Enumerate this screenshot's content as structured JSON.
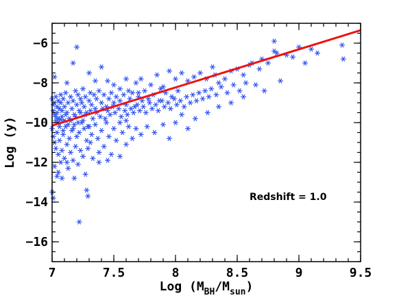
{
  "chart_data": {
    "type": "scatter",
    "xlabel": {
      "prefix": "Log (M",
      "sub1": "BH",
      "mid": "/M",
      "sub2": "sun",
      "suffix": ")"
    },
    "ylabel": "Log (y)",
    "xlim": [
      7,
      9.5
    ],
    "ylim": [
      -17,
      -5
    ],
    "xticks": [
      {
        "value": 7,
        "label": "7"
      },
      {
        "value": 7.5,
        "label": "7.5"
      },
      {
        "value": 8,
        "label": "8"
      },
      {
        "value": 8.5,
        "label": "8.5"
      },
      {
        "value": 9,
        "label": "9"
      },
      {
        "value": 9.5,
        "label": "9.5"
      }
    ],
    "yticks": [
      {
        "value": -6,
        "label": "−6"
      },
      {
        "value": -8,
        "label": "−8"
      },
      {
        "value": -10,
        "label": "−10"
      },
      {
        "value": -12,
        "label": "−12"
      },
      {
        "value": -14,
        "label": "−14"
      },
      {
        "value": -16,
        "label": "−16"
      }
    ],
    "annotation": "Redshift = 1.0",
    "colors": {
      "points": "#3355ee",
      "fit": "#ee1111"
    },
    "fit_line": {
      "x": [
        7.0,
        9.5
      ],
      "y": [
        -10.15,
        -5.35
      ]
    },
    "points": [
      {
        "x": 7.2,
        "y": -6.2
      },
      {
        "x": 7.17,
        "y": -7.0
      },
      {
        "x": 7.02,
        "y": -7.7
      },
      {
        "x": 7.12,
        "y": -8.0
      },
      {
        "x": 7.3,
        "y": -7.5
      },
      {
        "x": 7.35,
        "y": -7.9
      },
      {
        "x": 7.4,
        "y": -7.2
      },
      {
        "x": 7.45,
        "y": -7.9
      },
      {
        "x": 7.5,
        "y": -8.1
      },
      {
        "x": 7.55,
        "y": -8.3
      },
      {
        "x": 7.6,
        "y": -7.8
      },
      {
        "x": 7.62,
        "y": -8.4
      },
      {
        "x": 7.68,
        "y": -8.0
      },
      {
        "x": 7.7,
        "y": -8.5
      },
      {
        "x": 7.72,
        "y": -7.8
      },
      {
        "x": 7.8,
        "y": -8.1
      },
      {
        "x": 7.85,
        "y": -7.6
      },
      {
        "x": 7.88,
        "y": -8.3
      },
      {
        "x": 7.9,
        "y": -8.2
      },
      {
        "x": 7.95,
        "y": -7.4
      },
      {
        "x": 8.0,
        "y": -7.8
      },
      {
        "x": 8.02,
        "y": -8.4
      },
      {
        "x": 8.05,
        "y": -7.5
      },
      {
        "x": 8.1,
        "y": -7.9
      },
      {
        "x": 8.15,
        "y": -7.7
      },
      {
        "x": 8.2,
        "y": -7.5
      },
      {
        "x": 8.25,
        "y": -7.8
      },
      {
        "x": 8.3,
        "y": -7.2
      },
      {
        "x": 8.32,
        "y": -7.6
      },
      {
        "x": 8.35,
        "y": -8.0
      },
      {
        "x": 8.4,
        "y": -7.8
      },
      {
        "x": 8.45,
        "y": -7.4
      },
      {
        "x": 8.5,
        "y": -7.3
      },
      {
        "x": 8.55,
        "y": -7.6
      },
      {
        "x": 8.6,
        "y": -7.1
      },
      {
        "x": 8.62,
        "y": -7.0
      },
      {
        "x": 8.68,
        "y": -7.3
      },
      {
        "x": 8.7,
        "y": -6.8
      },
      {
        "x": 8.75,
        "y": -7.0
      },
      {
        "x": 8.8,
        "y": -5.9
      },
      {
        "x": 8.82,
        "y": -6.5
      },
      {
        "x": 8.9,
        "y": -6.6
      },
      {
        "x": 8.95,
        "y": -6.7
      },
      {
        "x": 9.0,
        "y": -6.2
      },
      {
        "x": 9.05,
        "y": -7.0
      },
      {
        "x": 9.1,
        "y": -6.3
      },
      {
        "x": 9.15,
        "y": -6.5
      },
      {
        "x": 9.35,
        "y": -6.1
      },
      {
        "x": 9.36,
        "y": -6.8
      },
      {
        "x": 8.8,
        "y": -6.4
      },
      {
        "x": 7.0,
        "y": -8.8
      },
      {
        "x": 7.01,
        "y": -9.1
      },
      {
        "x": 7.01,
        "y": -9.4
      },
      {
        "x": 7.02,
        "y": -9.0
      },
      {
        "x": 7.02,
        "y": -9.6
      },
      {
        "x": 7.03,
        "y": -8.7
      },
      {
        "x": 7.03,
        "y": -9.9
      },
      {
        "x": 7.04,
        "y": -9.2
      },
      {
        "x": 7.04,
        "y": -9.5
      },
      {
        "x": 7.05,
        "y": -8.9
      },
      {
        "x": 7.05,
        "y": -9.8
      },
      {
        "x": 7.06,
        "y": -9.3
      },
      {
        "x": 7.06,
        "y": -10.2
      },
      {
        "x": 7.07,
        "y": -9.0
      },
      {
        "x": 7.07,
        "y": -8.6
      },
      {
        "x": 7.08,
        "y": -9.7
      },
      {
        "x": 7.08,
        "y": -9.4
      },
      {
        "x": 7.09,
        "y": -8.8
      },
      {
        "x": 7.1,
        "y": -9.2
      },
      {
        "x": 7.1,
        "y": -9.9
      },
      {
        "x": 7.11,
        "y": -8.5
      },
      {
        "x": 7.12,
        "y": -9.5
      },
      {
        "x": 7.13,
        "y": -9.0
      },
      {
        "x": 7.14,
        "y": -9.8
      },
      {
        "x": 7.15,
        "y": -8.7
      },
      {
        "x": 7.16,
        "y": -9.3
      },
      {
        "x": 7.17,
        "y": -8.9
      },
      {
        "x": 7.18,
        "y": -9.6
      },
      {
        "x": 7.19,
        "y": -8.4
      },
      {
        "x": 7.2,
        "y": -9.1
      },
      {
        "x": 7.21,
        "y": -8.6
      },
      {
        "x": 7.22,
        "y": -9.4
      },
      {
        "x": 7.23,
        "y": -8.8
      },
      {
        "x": 7.24,
        "y": -9.0
      },
      {
        "x": 7.25,
        "y": -8.3
      },
      {
        "x": 7.26,
        "y": -9.2
      },
      {
        "x": 7.27,
        "y": -8.7
      },
      {
        "x": 7.28,
        "y": -9.5
      },
      {
        "x": 7.3,
        "y": -8.9
      },
      {
        "x": 7.31,
        "y": -8.5
      },
      {
        "x": 7.32,
        "y": -9.1
      },
      {
        "x": 7.34,
        "y": -8.6
      },
      {
        "x": 7.35,
        "y": -9.3
      },
      {
        "x": 7.36,
        "y": -8.8
      },
      {
        "x": 7.38,
        "y": -8.4
      },
      {
        "x": 7.4,
        "y": -9.0
      },
      {
        "x": 7.42,
        "y": -8.6
      },
      {
        "x": 7.44,
        "y": -9.2
      },
      {
        "x": 7.46,
        "y": -8.8
      },
      {
        "x": 7.48,
        "y": -8.5
      },
      {
        "x": 7.5,
        "y": -9.0
      },
      {
        "x": 7.52,
        "y": -8.7
      },
      {
        "x": 7.55,
        "y": -8.9
      },
      {
        "x": 7.58,
        "y": -8.6
      },
      {
        "x": 7.6,
        "y": -9.1
      },
      {
        "x": 7.63,
        "y": -8.8
      },
      {
        "x": 7.65,
        "y": -8.5
      },
      {
        "x": 7.67,
        "y": -9.2
      },
      {
        "x": 7.7,
        "y": -8.7
      },
      {
        "x": 7.73,
        "y": -8.9
      },
      {
        "x": 7.75,
        "y": -8.4
      },
      {
        "x": 7.78,
        "y": -8.8
      },
      {
        "x": 7.82,
        "y": -8.6
      },
      {
        "x": 7.87,
        "y": -8.9
      },
      {
        "x": 7.92,
        "y": -8.5
      },
      {
        "x": 7.97,
        "y": -8.7
      },
      {
        "x": 7.0,
        "y": -10.3
      },
      {
        "x": 7.01,
        "y": -10.7
      },
      {
        "x": 7.02,
        "y": -11.0
      },
      {
        "x": 7.03,
        "y": -11.3
      },
      {
        "x": 7.04,
        "y": -10.5
      },
      {
        "x": 7.05,
        "y": -11.6
      },
      {
        "x": 7.06,
        "y": -10.9
      },
      {
        "x": 7.07,
        "y": -12.0
      },
      {
        "x": 7.08,
        "y": -11.4
      },
      {
        "x": 7.09,
        "y": -10.6
      },
      {
        "x": 7.1,
        "y": -11.8
      },
      {
        "x": 7.11,
        "y": -10.2
      },
      {
        "x": 7.12,
        "y": -11.1
      },
      {
        "x": 7.13,
        "y": -12.3
      },
      {
        "x": 7.14,
        "y": -10.8
      },
      {
        "x": 7.15,
        "y": -11.5
      },
      {
        "x": 7.16,
        "y": -10.4
      },
      {
        "x": 7.17,
        "y": -11.9
      },
      {
        "x": 7.18,
        "y": -10.1
      },
      {
        "x": 7.19,
        "y": -11.2
      },
      {
        "x": 7.2,
        "y": -10.7
      },
      {
        "x": 7.21,
        "y": -12.1
      },
      {
        "x": 7.22,
        "y": -10.5
      },
      {
        "x": 7.23,
        "y": -11.4
      },
      {
        "x": 7.24,
        "y": -10.0
      },
      {
        "x": 7.25,
        "y": -11.7
      },
      {
        "x": 7.26,
        "y": -10.3
      },
      {
        "x": 7.27,
        "y": -12.6
      },
      {
        "x": 7.28,
        "y": -10.9
      },
      {
        "x": 7.29,
        "y": -11.3
      },
      {
        "x": 7.3,
        "y": -10.2
      },
      {
        "x": 7.31,
        "y": -11.0
      },
      {
        "x": 7.32,
        "y": -10.6
      },
      {
        "x": 7.33,
        "y": -11.8
      },
      {
        "x": 7.35,
        "y": -10.1
      },
      {
        "x": 7.37,
        "y": -10.8
      },
      {
        "x": 7.38,
        "y": -11.5
      },
      {
        "x": 7.4,
        "y": -10.4
      },
      {
        "x": 7.42,
        "y": -11.2
      },
      {
        "x": 7.44,
        "y": -10.0
      },
      {
        "x": 7.46,
        "y": -10.7
      },
      {
        "x": 7.48,
        "y": -11.6
      },
      {
        "x": 7.5,
        "y": -10.3
      },
      {
        "x": 7.52,
        "y": -10.9
      },
      {
        "x": 7.55,
        "y": -11.7
      },
      {
        "x": 7.57,
        "y": -10.5
      },
      {
        "x": 7.6,
        "y": -11.1
      },
      {
        "x": 7.62,
        "y": -10.2
      },
      {
        "x": 7.65,
        "y": -10.8
      },
      {
        "x": 7.0,
        "y": -13.5
      },
      {
        "x": 7.01,
        "y": -13.8
      },
      {
        "x": 7.05,
        "y": -12.5
      },
      {
        "x": 7.08,
        "y": -12.8
      },
      {
        "x": 7.28,
        "y": -13.4
      },
      {
        "x": 7.29,
        "y": -13.7
      },
      {
        "x": 7.22,
        "y": -15.0
      },
      {
        "x": 7.03,
        "y": -9.7
      },
      {
        "x": 7.05,
        "y": -10.0
      },
      {
        "x": 7.07,
        "y": -9.85
      },
      {
        "x": 7.09,
        "y": -10.4
      },
      {
        "x": 7.11,
        "y": -9.6
      },
      {
        "x": 7.13,
        "y": -10.1
      },
      {
        "x": 7.15,
        "y": -9.9
      },
      {
        "x": 7.17,
        "y": -10.3
      },
      {
        "x": 7.19,
        "y": -9.7
      },
      {
        "x": 7.21,
        "y": -10.0
      },
      {
        "x": 7.23,
        "y": -9.5
      },
      {
        "x": 7.25,
        "y": -9.9
      },
      {
        "x": 7.27,
        "y": -9.6
      },
      {
        "x": 7.29,
        "y": -10.2
      },
      {
        "x": 7.31,
        "y": -9.4
      },
      {
        "x": 7.33,
        "y": -9.8
      },
      {
        "x": 7.36,
        "y": -9.5
      },
      {
        "x": 7.39,
        "y": -9.7
      },
      {
        "x": 7.41,
        "y": -9.3
      },
      {
        "x": 7.43,
        "y": -9.8
      },
      {
        "x": 7.45,
        "y": -9.4
      },
      {
        "x": 7.47,
        "y": -9.6
      },
      {
        "x": 7.49,
        "y": -9.2
      },
      {
        "x": 7.51,
        "y": -9.5
      },
      {
        "x": 7.54,
        "y": -9.3
      },
      {
        "x": 7.56,
        "y": -9.7
      },
      {
        "x": 7.59,
        "y": -9.4
      },
      {
        "x": 7.61,
        "y": -9.6
      },
      {
        "x": 7.64,
        "y": -9.3
      },
      {
        "x": 7.66,
        "y": -9.5
      },
      {
        "x": 7.69,
        "y": -9.1
      },
      {
        "x": 7.71,
        "y": -9.4
      },
      {
        "x": 7.74,
        "y": -9.2
      },
      {
        "x": 7.76,
        "y": -9.5
      },
      {
        "x": 7.79,
        "y": -9.0
      },
      {
        "x": 7.81,
        "y": -9.3
      },
      {
        "x": 7.84,
        "y": -9.1
      },
      {
        "x": 7.86,
        "y": -9.4
      },
      {
        "x": 7.89,
        "y": -8.9
      },
      {
        "x": 7.91,
        "y": -9.2
      },
      {
        "x": 7.94,
        "y": -9.0
      },
      {
        "x": 7.96,
        "y": -9.3
      },
      {
        "x": 7.99,
        "y": -8.8
      },
      {
        "x": 8.01,
        "y": -9.1
      },
      {
        "x": 8.04,
        "y": -8.9
      },
      {
        "x": 8.07,
        "y": -9.2
      },
      {
        "x": 8.09,
        "y": -8.7
      },
      {
        "x": 8.12,
        "y": -9.0
      },
      {
        "x": 8.14,
        "y": -8.6
      },
      {
        "x": 8.17,
        "y": -8.9
      },
      {
        "x": 8.19,
        "y": -8.5
      },
      {
        "x": 8.22,
        "y": -8.8
      },
      {
        "x": 8.24,
        "y": -8.4
      },
      {
        "x": 8.27,
        "y": -8.7
      },
      {
        "x": 8.29,
        "y": -8.3
      },
      {
        "x": 8.33,
        "y": -8.6
      },
      {
        "x": 8.37,
        "y": -8.2
      },
      {
        "x": 8.42,
        "y": -8.5
      },
      {
        "x": 8.47,
        "y": -8.1
      },
      {
        "x": 8.52,
        "y": -8.4
      },
      {
        "x": 8.57,
        "y": -8.0
      },
      {
        "x": 8.65,
        "y": -8.1
      },
      {
        "x": 7.55,
        "y": -10.0
      },
      {
        "x": 7.6,
        "y": -9.9
      },
      {
        "x": 7.68,
        "y": -10.3
      },
      {
        "x": 7.72,
        "y": -10.6
      },
      {
        "x": 7.77,
        "y": -10.2
      },
      {
        "x": 7.83,
        "y": -10.5
      },
      {
        "x": 7.9,
        "y": -10.1
      },
      {
        "x": 7.95,
        "y": -10.8
      },
      {
        "x": 8.0,
        "y": -10.0
      },
      {
        "x": 8.05,
        "y": -9.6
      },
      {
        "x": 8.1,
        "y": -10.3
      },
      {
        "x": 8.16,
        "y": -9.8
      },
      {
        "x": 8.26,
        "y": -9.5
      },
      {
        "x": 8.35,
        "y": -9.2
      },
      {
        "x": 8.45,
        "y": -9.0
      },
      {
        "x": 8.55,
        "y": -8.7
      },
      {
        "x": 8.72,
        "y": -8.4
      },
      {
        "x": 8.85,
        "y": -7.9
      },
      {
        "x": 7.38,
        "y": -12.0
      },
      {
        "x": 7.45,
        "y": -11.9
      },
      {
        "x": 7.18,
        "y": -12.8
      },
      {
        "x": 7.12,
        "y": -12.0
      },
      {
        "x": 7.02,
        "y": -12.2
      },
      {
        "x": 7.04,
        "y": -12.7
      }
    ]
  }
}
